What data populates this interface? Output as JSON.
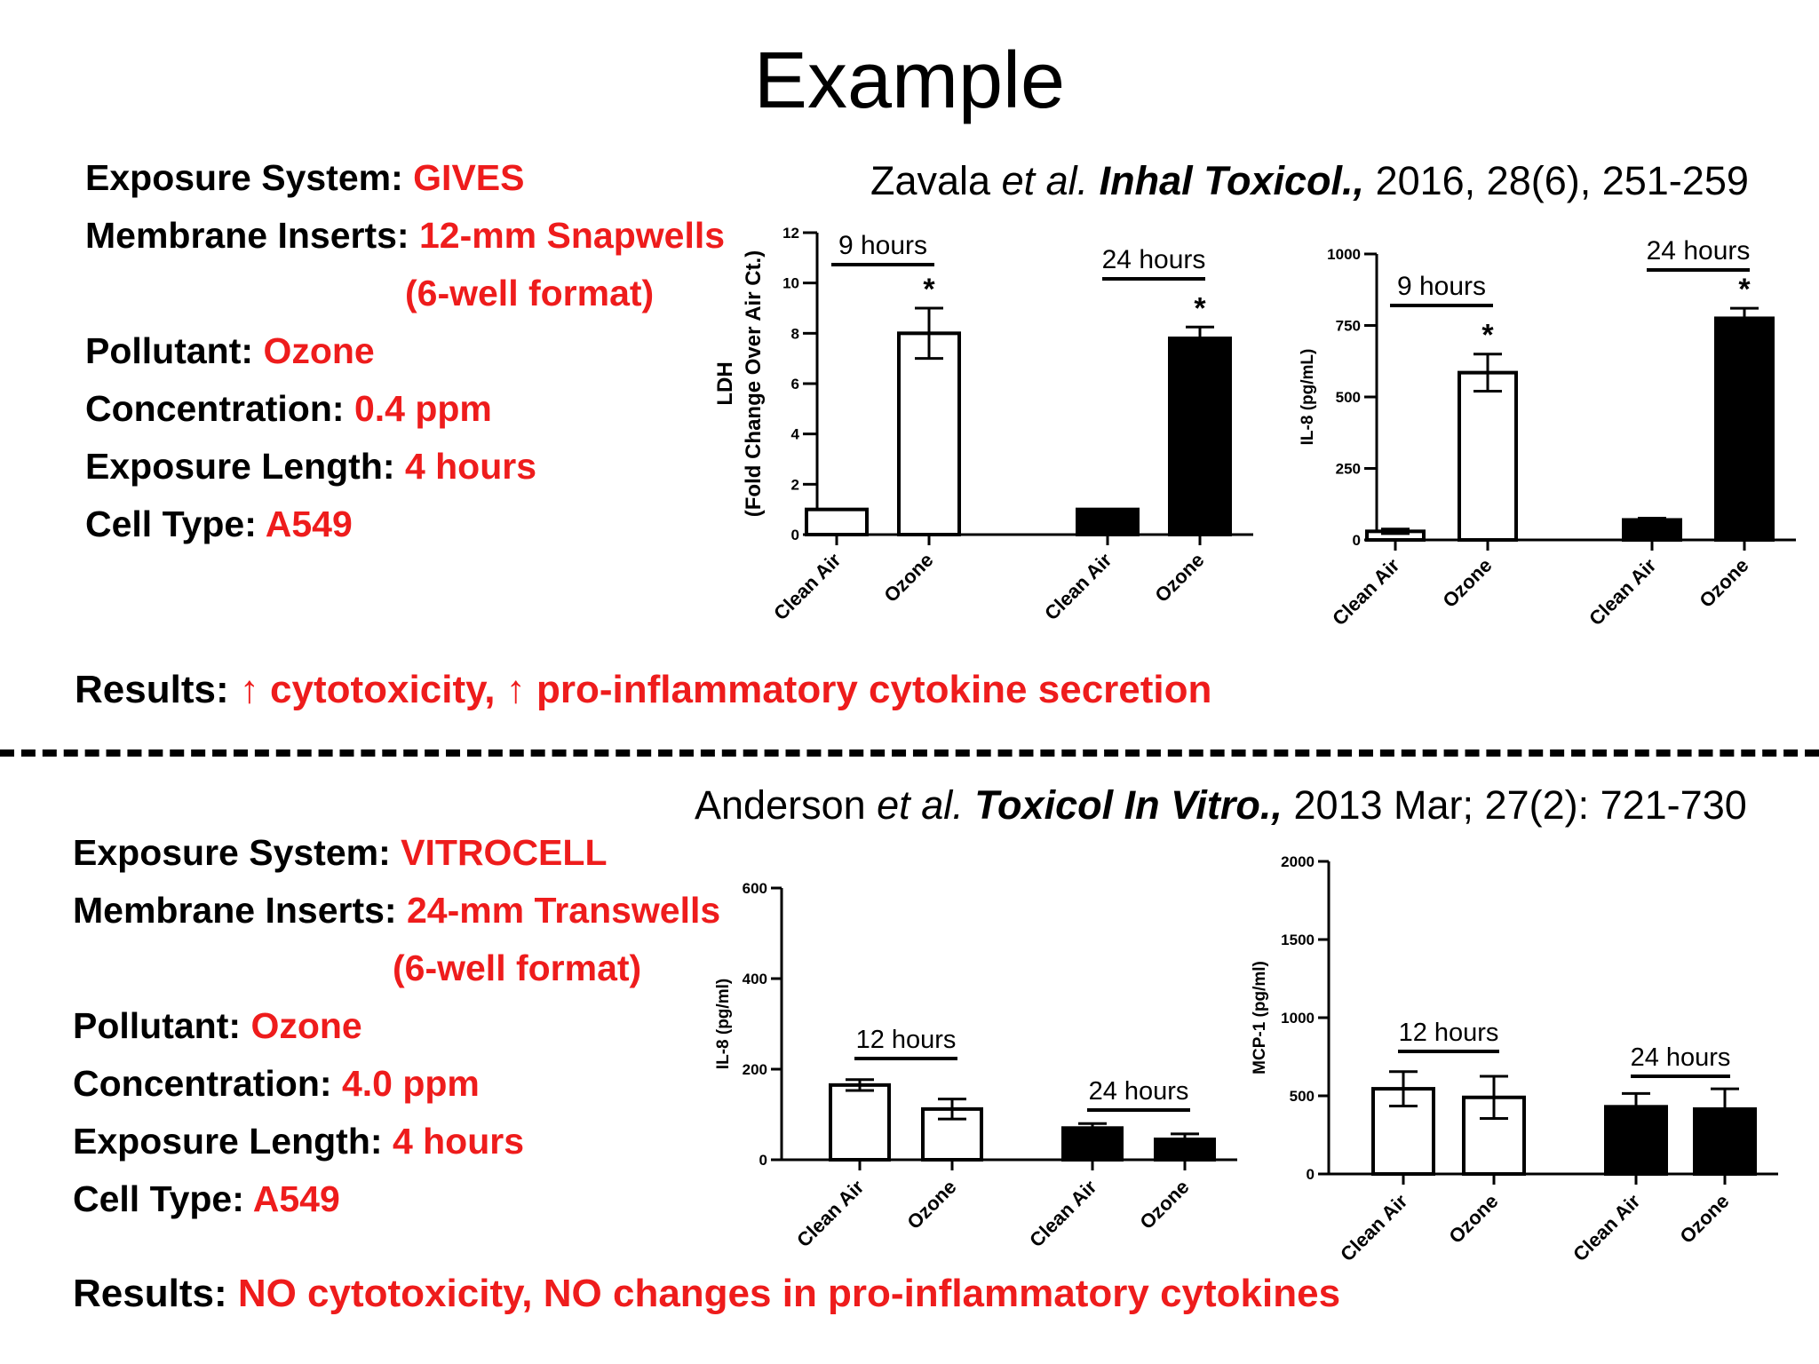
{
  "slide": {
    "title": "Example",
    "top": {
      "citation": {
        "authors": "Zavala",
        "etal": "et al.",
        "journal": "Inhal Toxicol.,",
        "details": "2016, 28(6), 251-259"
      },
      "fields": [
        {
          "label": "Exposure System:",
          "value": "GIVES"
        },
        {
          "label": "Membrane Inserts:",
          "value": "12-mm Snapwells"
        },
        {
          "label": "",
          "value": "(6-well format)"
        },
        {
          "label": "Pollutant:",
          "value": "Ozone"
        },
        {
          "label": "Concentration:",
          "value": "0.4 ppm"
        },
        {
          "label": "Exposure Length:",
          "value": "4 hours"
        },
        {
          "label": "Cell Type:",
          "value": "A549"
        }
      ],
      "results": {
        "label": "Results:",
        "value": "↑ cytotoxicity, ↑ pro-inflammatory cytokine secretion"
      }
    },
    "bottom": {
      "citation": {
        "authors": "Anderson",
        "etal": "et al.",
        "journal": "Toxicol In Vitro.,",
        "details": "2013 Mar; 27(2): 721-730"
      },
      "fields": [
        {
          "label": "Exposure System:",
          "value": "VITROCELL"
        },
        {
          "label": "Membrane Inserts:",
          "value": "24-mm Transwells"
        },
        {
          "label": "",
          "value": "(6-well format)"
        },
        {
          "label": "Pollutant:",
          "value": "Ozone"
        },
        {
          "label": "Concentration:",
          "value": "4.0 ppm"
        },
        {
          "label": "Exposure Length:",
          "value": "4 hours"
        },
        {
          "label": "Cell Type:",
          "value": "A549"
        }
      ],
      "results": {
        "label": "Results:",
        "value": "NO cytotoxicity, NO changes in pro-inflammatory cytokines"
      }
    }
  },
  "chart_data": [
    {
      "type": "bar",
      "ylabel_lines": [
        "LDH",
        "(Fold Change  Over Air Ct.)"
      ],
      "ylim": [
        0,
        12
      ],
      "yticks": [
        0,
        2,
        4,
        6,
        8,
        10,
        12
      ],
      "groups": [
        {
          "label": "9 hours",
          "categories": [
            "Clean Air",
            "Ozone"
          ],
          "values": [
            1.0,
            8.0
          ],
          "errors": [
            0,
            1.0
          ],
          "fills": [
            "white",
            "white"
          ],
          "significant": [
            false,
            true
          ]
        },
        {
          "label": "24 hours",
          "categories": [
            "Clean Air",
            "Ozone"
          ],
          "values": [
            1.0,
            7.8
          ],
          "errors": [
            0,
            0.45
          ],
          "fills": [
            "black",
            "black"
          ],
          "significant": [
            false,
            true
          ]
        }
      ],
      "annotation": "*"
    },
    {
      "type": "bar",
      "ylabel_lines": [
        "IL-8 (pg/mL)"
      ],
      "ylim": [
        0,
        1000
      ],
      "yticks": [
        0,
        250,
        500,
        750,
        1000
      ],
      "groups": [
        {
          "label": "9 hours",
          "categories": [
            "Clean Air",
            "Ozone"
          ],
          "values": [
            30,
            585
          ],
          "errors": [
            8,
            65
          ],
          "fills": [
            "white",
            "white"
          ],
          "significant": [
            false,
            true
          ]
        },
        {
          "label": "24 hours",
          "categories": [
            "Clean Air",
            "Ozone"
          ],
          "values": [
            70,
            775
          ],
          "errors": [
            6,
            35
          ],
          "fills": [
            "black",
            "black"
          ],
          "significant": [
            false,
            true
          ]
        }
      ],
      "annotation": "*"
    },
    {
      "type": "bar",
      "ylabel_lines": [
        "IL-8 (pg/ml)"
      ],
      "ylim": [
        0,
        600
      ],
      "yticks": [
        0,
        200,
        400,
        600
      ],
      "groups": [
        {
          "label": "12 hours",
          "categories": [
            "Clean Air",
            "Ozone"
          ],
          "values": [
            165,
            112
          ],
          "errors": [
            12,
            22
          ],
          "fills": [
            "white",
            "white"
          ],
          "significant": [
            false,
            false
          ]
        },
        {
          "label": "24 hours",
          "categories": [
            "Clean Air",
            "Ozone"
          ],
          "values": [
            70,
            45
          ],
          "errors": [
            10,
            12
          ],
          "fills": [
            "black",
            "black"
          ],
          "significant": [
            false,
            false
          ]
        }
      ],
      "annotation": ""
    },
    {
      "type": "bar",
      "ylabel_lines": [
        "MCP-1 (pg/ml)"
      ],
      "ylim": [
        0,
        2000
      ],
      "yticks": [
        0,
        500,
        1000,
        1500,
        2000
      ],
      "groups": [
        {
          "label": "12 hours",
          "categories": [
            "Clean Air",
            "Ozone"
          ],
          "values": [
            545,
            490
          ],
          "errors": [
            110,
            135
          ],
          "fills": [
            "white",
            "white"
          ],
          "significant": [
            false,
            false
          ]
        },
        {
          "label": "24 hours",
          "categories": [
            "Clean Air",
            "Ozone"
          ],
          "values": [
            430,
            415
          ],
          "errors": [
            85,
            130
          ],
          "fills": [
            "black",
            "black"
          ],
          "significant": [
            false,
            false
          ]
        }
      ],
      "annotation": ""
    }
  ]
}
